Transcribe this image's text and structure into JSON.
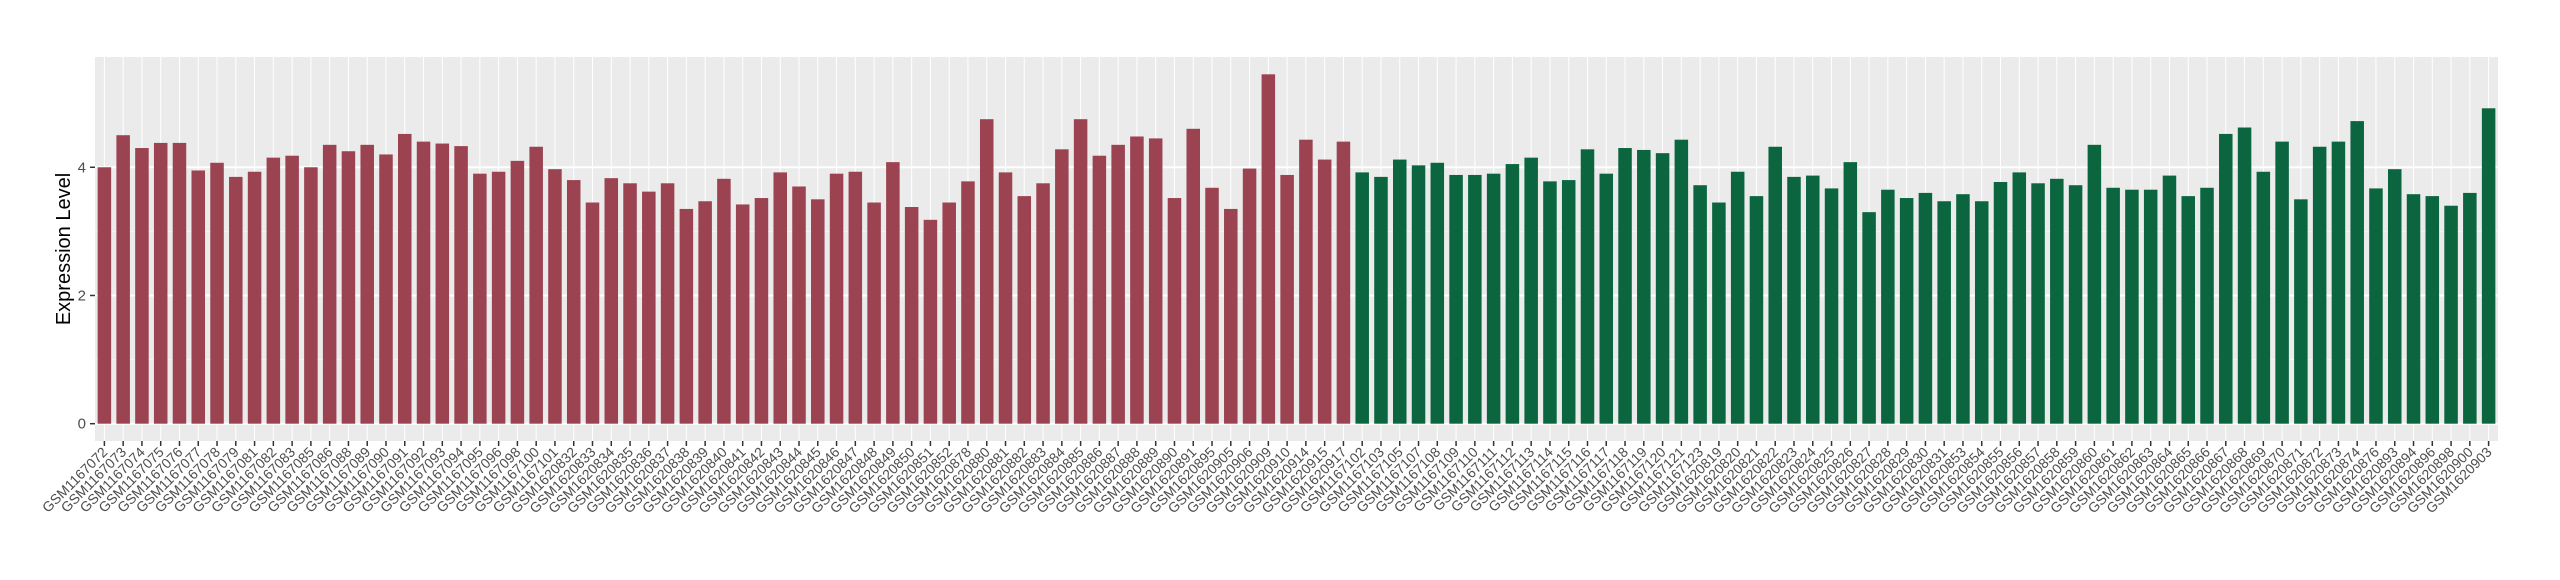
{
  "chart_data": {
    "type": "bar",
    "y_label": "Expression Level",
    "categories": [
      "GSM1167072",
      "GSM1167073",
      "GSM1167074",
      "GSM1167075",
      "GSM1167076",
      "GSM1167077",
      "GSM1167078",
      "GSM1167079",
      "GSM1167081",
      "GSM1167082",
      "GSM1167083",
      "GSM1167085",
      "GSM1167086",
      "GSM1167088",
      "GSM1167089",
      "GSM1167090",
      "GSM1167091",
      "GSM1167092",
      "GSM1167093",
      "GSM1167094",
      "GSM1167095",
      "GSM1167096",
      "GSM1167098",
      "GSM1167100",
      "GSM1167101",
      "GSM1620832",
      "GSM1620833",
      "GSM1620834",
      "GSM1620835",
      "GSM1620836",
      "GSM1620837",
      "GSM1620838",
      "GSM1620839",
      "GSM1620840",
      "GSM1620841",
      "GSM1620842",
      "GSM1620843",
      "GSM1620844",
      "GSM1620845",
      "GSM1620846",
      "GSM1620847",
      "GSM1620848",
      "GSM1620849",
      "GSM1620850",
      "GSM1620851",
      "GSM1620852",
      "GSM1620878",
      "GSM1620880",
      "GSM1620881",
      "GSM1620882",
      "GSM1620883",
      "GSM1620884",
      "GSM1620885",
      "GSM1620886",
      "GSM1620887",
      "GSM1620888",
      "GSM1620889",
      "GSM1620890",
      "GSM1620891",
      "GSM1620895",
      "GSM1620905",
      "GSM1620906",
      "GSM1620909",
      "GSM1620910",
      "GSM1620914",
      "GSM1620915",
      "GSM1620917",
      "GSM1167102",
      "GSM1167103",
      "GSM1167105",
      "GSM1167107",
      "GSM1167108",
      "GSM1167109",
      "GSM1167110",
      "GSM1167111",
      "GSM1167112",
      "GSM1167113",
      "GSM1167114",
      "GSM1167115",
      "GSM1167116",
      "GSM1167117",
      "GSM1167118",
      "GSM1167119",
      "GSM1167120",
      "GSM1167121",
      "GSM1167123",
      "GSM1620819",
      "GSM1620820",
      "GSM1620821",
      "GSM1620822",
      "GSM1620823",
      "GSM1620824",
      "GSM1620825",
      "GSM1620826",
      "GSM1620827",
      "GSM1620828",
      "GSM1620829",
      "GSM1620830",
      "GSM1620831",
      "GSM1620853",
      "GSM1620854",
      "GSM1620855",
      "GSM1620856",
      "GSM1620857",
      "GSM1620858",
      "GSM1620859",
      "GSM1620860",
      "GSM1620861",
      "GSM1620862",
      "GSM1620863",
      "GSM1620864",
      "GSM1620865",
      "GSM1620866",
      "GSM1620867",
      "GSM1620868",
      "GSM1620869",
      "GSM1620870",
      "GSM1620871",
      "GSM1620872",
      "GSM1620873",
      "GSM1620874",
      "GSM1620876",
      "GSM1620893",
      "GSM1620894",
      "GSM1620896",
      "GSM1620898",
      "GSM1620900",
      "GSM1620903"
    ],
    "values": [
      4.0,
      4.5,
      4.3,
      4.38,
      4.38,
      3.95,
      4.07,
      3.85,
      3.93,
      4.15,
      4.18,
      4.0,
      4.35,
      4.25,
      4.35,
      4.2,
      4.52,
      4.4,
      4.37,
      4.33,
      3.9,
      3.93,
      4.1,
      4.32,
      3.97,
      3.8,
      3.45,
      3.83,
      3.75,
      3.62,
      3.75,
      3.35,
      3.47,
      3.82,
      3.42,
      3.52,
      3.92,
      3.7,
      3.5,
      3.9,
      3.93,
      3.45,
      4.08,
      3.38,
      3.18,
      3.45,
      3.78,
      4.75,
      3.92,
      3.55,
      3.75,
      4.28,
      4.75,
      4.18,
      4.35,
      4.48,
      4.45,
      3.52,
      4.6,
      3.68,
      3.35,
      3.98,
      5.45,
      3.88,
      4.43,
      4.12,
      4.4,
      3.92,
      3.85,
      4.12,
      4.03,
      4.07,
      3.88,
      3.88,
      3.9,
      4.05,
      4.15,
      3.78,
      3.8,
      4.28,
      3.9,
      4.3,
      4.27,
      4.22,
      4.43,
      3.72,
      3.45,
      3.93,
      3.55,
      4.32,
      3.85,
      3.87,
      3.67,
      4.08,
      3.3,
      3.65,
      3.52,
      3.6,
      3.47,
      3.58,
      3.47,
      3.77,
      3.92,
      3.75,
      3.82,
      3.72,
      4.35,
      3.68,
      3.65,
      3.65,
      3.87,
      3.55,
      3.68,
      4.52,
      4.62,
      3.93,
      4.4,
      3.5,
      4.32,
      4.4,
      4.72,
      3.67,
      3.97,
      3.58,
      3.55,
      3.4,
      3.6,
      4.92
    ],
    "colors": [
      "#9b4350",
      "#9b4350",
      "#9b4350",
      "#9b4350",
      "#9b4350",
      "#9b4350",
      "#9b4350",
      "#9b4350",
      "#9b4350",
      "#9b4350",
      "#9b4350",
      "#9b4350",
      "#9b4350",
      "#9b4350",
      "#9b4350",
      "#9b4350",
      "#9b4350",
      "#9b4350",
      "#9b4350",
      "#9b4350",
      "#9b4350",
      "#9b4350",
      "#9b4350",
      "#9b4350",
      "#9b4350",
      "#9b4350",
      "#9b4350",
      "#9b4350",
      "#9b4350",
      "#9b4350",
      "#9b4350",
      "#9b4350",
      "#9b4350",
      "#9b4350",
      "#9b4350",
      "#9b4350",
      "#9b4350",
      "#9b4350",
      "#9b4350",
      "#9b4350",
      "#9b4350",
      "#9b4350",
      "#9b4350",
      "#9b4350",
      "#9b4350",
      "#9b4350",
      "#9b4350",
      "#9b4350",
      "#9b4350",
      "#9b4350",
      "#9b4350",
      "#9b4350",
      "#9b4350",
      "#9b4350",
      "#9b4350",
      "#9b4350",
      "#9b4350",
      "#9b4350",
      "#9b4350",
      "#9b4350",
      "#9b4350",
      "#9b4350",
      "#9b4350",
      "#9b4350",
      "#9b4350",
      "#9b4350",
      "#9b4350",
      "#0b6640",
      "#0b6640",
      "#0b6640",
      "#0b6640",
      "#0b6640",
      "#0b6640",
      "#0b6640",
      "#0b6640",
      "#0b6640",
      "#0b6640",
      "#0b6640",
      "#0b6640",
      "#0b6640",
      "#0b6640",
      "#0b6640",
      "#0b6640",
      "#0b6640",
      "#0b6640",
      "#0b6640",
      "#0b6640",
      "#0b6640",
      "#0b6640",
      "#0b6640",
      "#0b6640",
      "#0b6640",
      "#0b6640",
      "#0b6640",
      "#0b6640",
      "#0b6640",
      "#0b6640",
      "#0b6640",
      "#0b6640",
      "#0b6640",
      "#0b6640",
      "#0b6640",
      "#0b6640",
      "#0b6640",
      "#0b6640",
      "#0b6640",
      "#0b6640",
      "#0b6640",
      "#0b6640",
      "#0b6640",
      "#0b6640",
      "#0b6640",
      "#0b6640",
      "#0b6640",
      "#0b6640",
      "#0b6640",
      "#0b6640",
      "#0b6640",
      "#0b6640",
      "#0b6640",
      "#0b6640",
      "#0b6640",
      "#0b6640",
      "#0b6640",
      "#0b6640",
      "#0b6640",
      "#0b6640",
      "#0b6640"
    ],
    "ylim": [
      -0.27,
      5.72
    ],
    "yticks": [
      0,
      2,
      4
    ],
    "grid": true
  }
}
